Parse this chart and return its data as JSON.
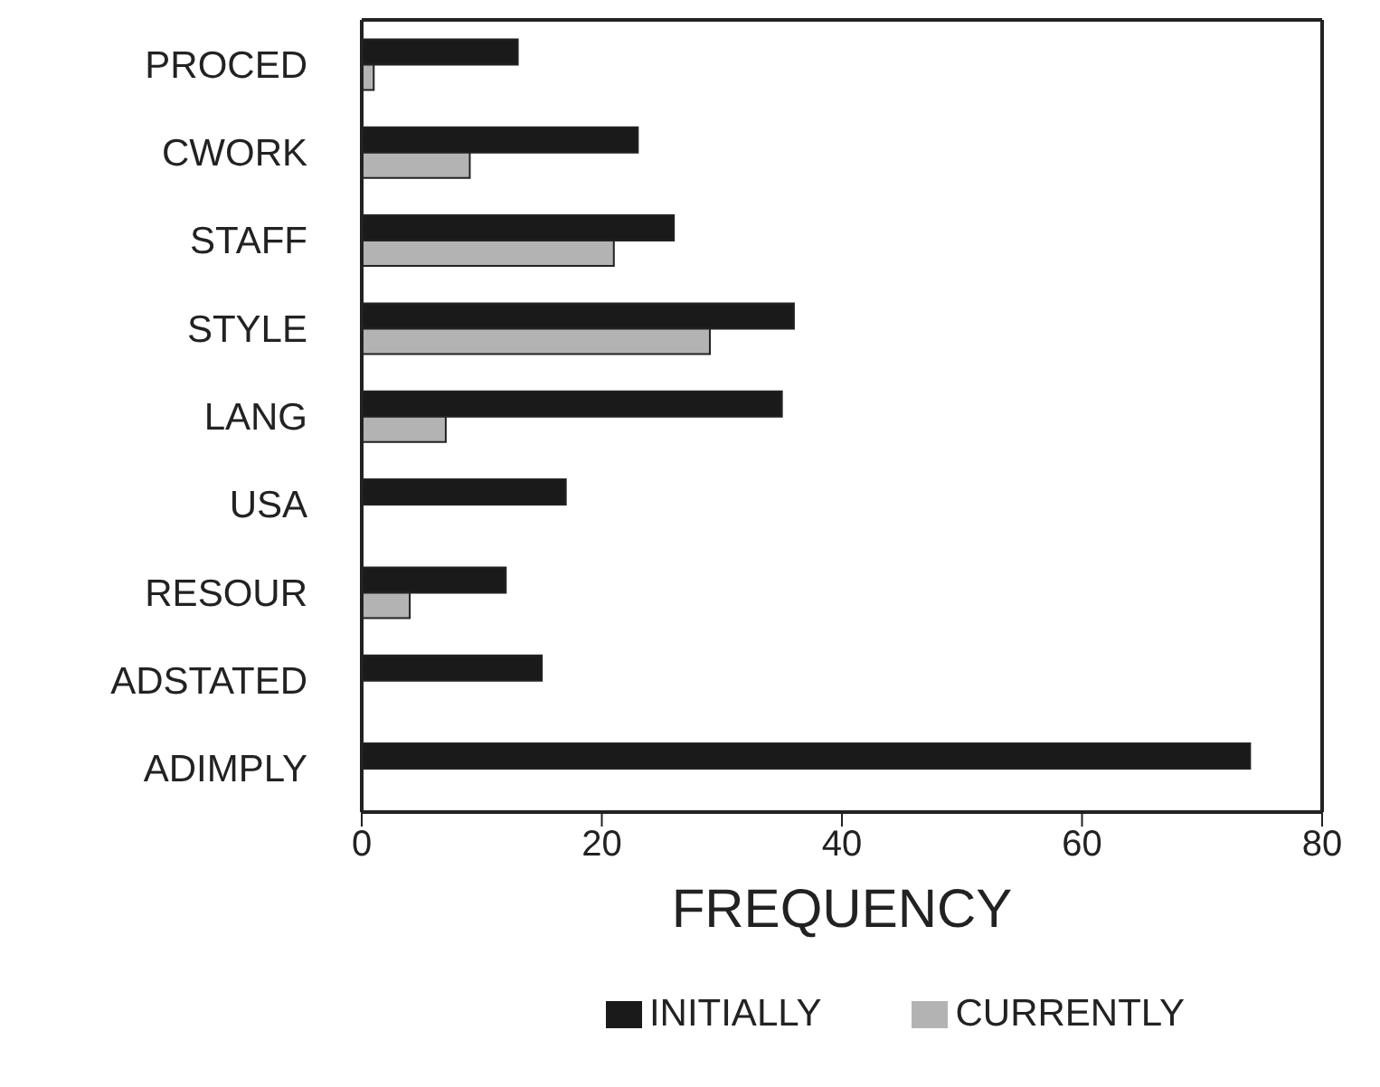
{
  "chart_data": {
    "type": "bar",
    "orientation": "horizontal",
    "xlabel": "FREQUENCY",
    "categories": [
      "PROCED",
      "CWORK",
      "STAFF",
      "STYLE",
      "LANG",
      "USA",
      "RESOUR",
      "ADSTATED",
      "ADIMPLY"
    ],
    "series": [
      {
        "name": "INITIALLY",
        "color": "#1a1a1a",
        "values": [
          13,
          23,
          26,
          36,
          35,
          17,
          12,
          15,
          74
        ]
      },
      {
        "name": "CURRENTLY",
        "color": "#b3b3b3",
        "values": [
          1,
          9,
          21,
          29,
          7,
          0,
          4,
          0,
          0
        ]
      }
    ],
    "xlim": [
      0,
      80
    ],
    "xticks": [
      0,
      20,
      40,
      60,
      80
    ],
    "grid": false,
    "legend": "bottom"
  }
}
